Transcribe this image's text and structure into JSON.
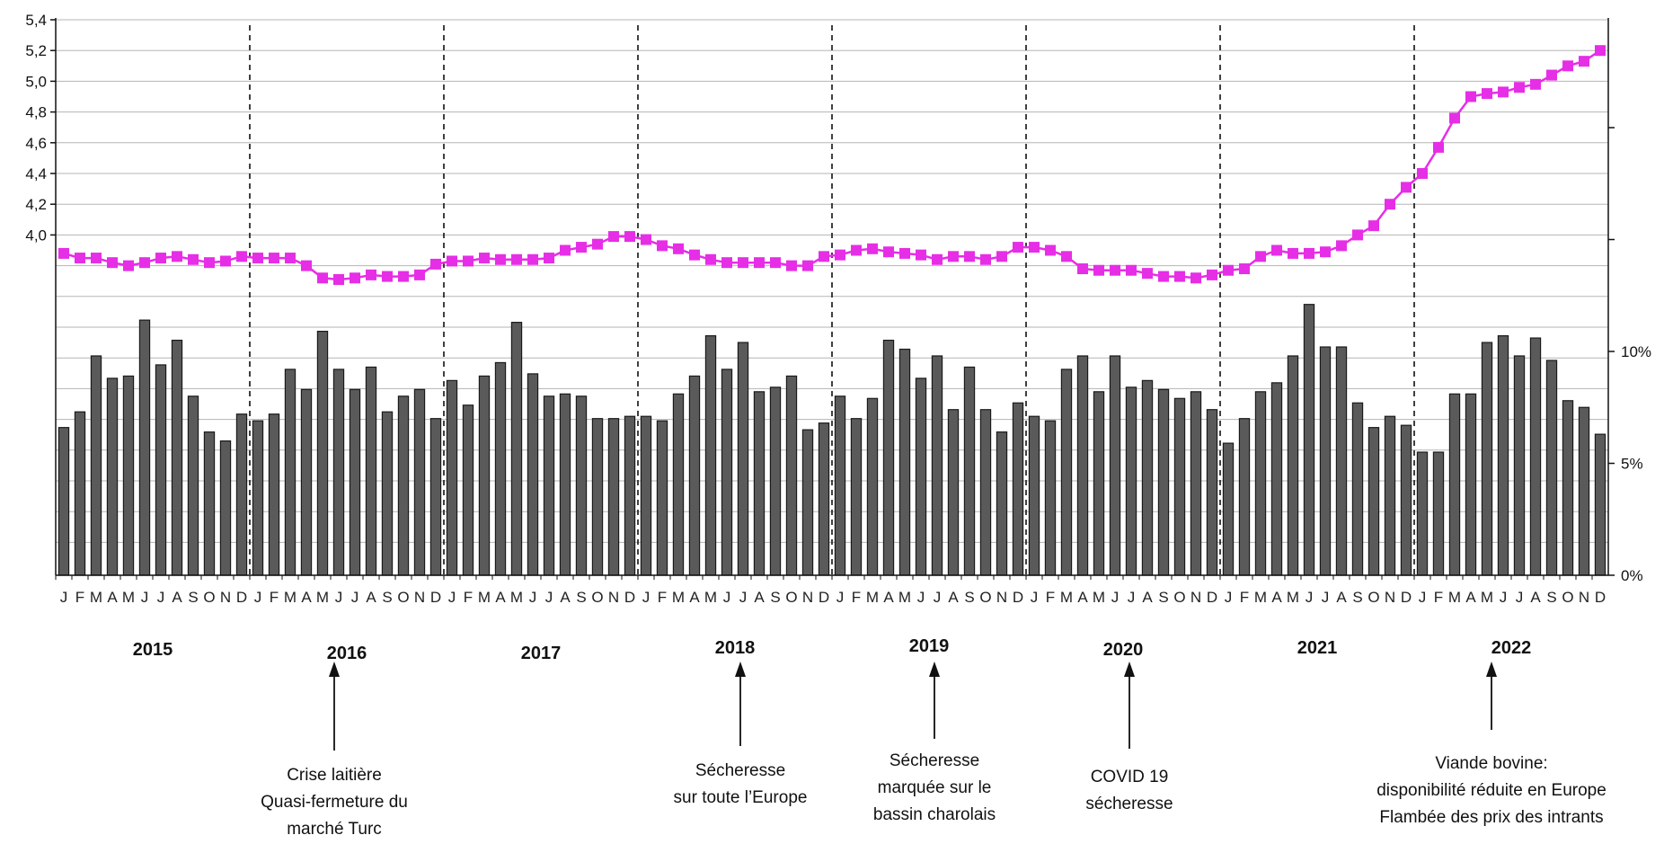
{
  "chart_data": {
    "type": "bar+line",
    "left_axis": {
      "ticks": [
        4.0,
        4.2,
        4.4,
        4.6,
        4.8,
        5.0,
        5.2,
        5.4
      ],
      "tick_labels": [
        "4,0",
        "4,2",
        "4,4",
        "4,6",
        "4,8",
        "5,0",
        "5,2",
        "5,4"
      ]
    },
    "right_axis": {
      "ticks": [
        0,
        5,
        10
      ],
      "tick_labels": [
        "0%",
        "5%",
        "10%"
      ],
      "range": [
        0,
        20
      ]
    },
    "grid": true,
    "month_labels": [
      "J",
      "F",
      "M",
      "A",
      "M",
      "J",
      "J",
      "A",
      "S",
      "O",
      "N",
      "D"
    ],
    "years": [
      "2015",
      "2016",
      "2017",
      "2018",
      "2019",
      "2020",
      "2021",
      "2022"
    ],
    "line_series": {
      "color": "#e62ee6",
      "values": [
        3.88,
        3.85,
        3.85,
        3.82,
        3.8,
        3.82,
        3.85,
        3.86,
        3.84,
        3.82,
        3.83,
        3.86,
        3.85,
        3.85,
        3.85,
        3.8,
        3.72,
        3.71,
        3.72,
        3.74,
        3.73,
        3.73,
        3.74,
        3.81,
        3.83,
        3.83,
        3.85,
        3.84,
        3.84,
        3.84,
        3.85,
        3.9,
        3.92,
        3.94,
        3.99,
        3.99,
        3.97,
        3.93,
        3.91,
        3.87,
        3.84,
        3.82,
        3.82,
        3.82,
        3.82,
        3.8,
        3.8,
        3.86,
        3.87,
        3.9,
        3.91,
        3.89,
        3.88,
        3.87,
        3.84,
        3.86,
        3.86,
        3.84,
        3.86,
        3.92,
        3.92,
        3.9,
        3.86,
        3.78,
        3.77,
        3.77,
        3.77,
        3.75,
        3.73,
        3.73,
        3.72,
        3.74,
        3.77,
        3.78,
        3.86,
        3.9,
        3.88,
        3.88,
        3.89,
        3.93,
        4.0,
        4.06,
        4.2,
        4.31,
        4.4,
        4.57,
        4.76,
        4.9,
        4.92,
        4.93,
        4.96,
        4.98,
        5.04,
        5.1,
        5.13,
        5.2
      ]
    },
    "bar_series": {
      "color": "#5a5a5a",
      "values": [
        6.6,
        7.3,
        9.8,
        8.8,
        8.9,
        11.4,
        9.4,
        10.5,
        8.0,
        6.4,
        6.0,
        7.2,
        6.9,
        7.2,
        9.2,
        8.3,
        10.9,
        9.2,
        8.3,
        9.3,
        7.3,
        8.0,
        8.3,
        7.0,
        8.7,
        7.6,
        8.9,
        9.5,
        11.3,
        9.0,
        8.0,
        8.1,
        8.0,
        7.0,
        7.0,
        7.1,
        7.1,
        6.9,
        8.1,
        8.9,
        10.7,
        9.2,
        10.4,
        8.2,
        8.4,
        8.9,
        6.5,
        6.8,
        8.0,
        7.0,
        7.9,
        10.5,
        10.1,
        8.8,
        9.8,
        7.4,
        9.3,
        7.4,
        6.4,
        7.7,
        7.1,
        6.9,
        9.2,
        9.8,
        8.2,
        9.8,
        8.4,
        8.7,
        8.3,
        7.9,
        8.2,
        7.4,
        5.9,
        7.0,
        8.2,
        8.6,
        9.8,
        12.1,
        10.2,
        10.2,
        7.7,
        6.6,
        7.1,
        6.7,
        5.5,
        5.5,
        8.1,
        8.1,
        10.4,
        10.7,
        9.8,
        10.6,
        9.6,
        7.8,
        7.5,
        6.3
      ]
    },
    "annotations": [
      {
        "year_index": 1,
        "lines": [
          "Crise laitière",
          "Quasi-fermeture du",
          "marché Turc"
        ]
      },
      {
        "year_index": 3,
        "lines": [
          "Sécheresse",
          "sur toute l’Europe"
        ]
      },
      {
        "year_index": 4,
        "lines": [
          "Sécheresse",
          "marquée sur le",
          "bassin charolais"
        ]
      },
      {
        "year_index": 5,
        "lines": [
          "COVID 19",
          "sécheresse"
        ]
      },
      {
        "year_index": 7,
        "lines": [
          "Viande bovine:",
          "disponibilité réduite en Europe",
          "Flambée des prix des intrants"
        ]
      }
    ]
  }
}
